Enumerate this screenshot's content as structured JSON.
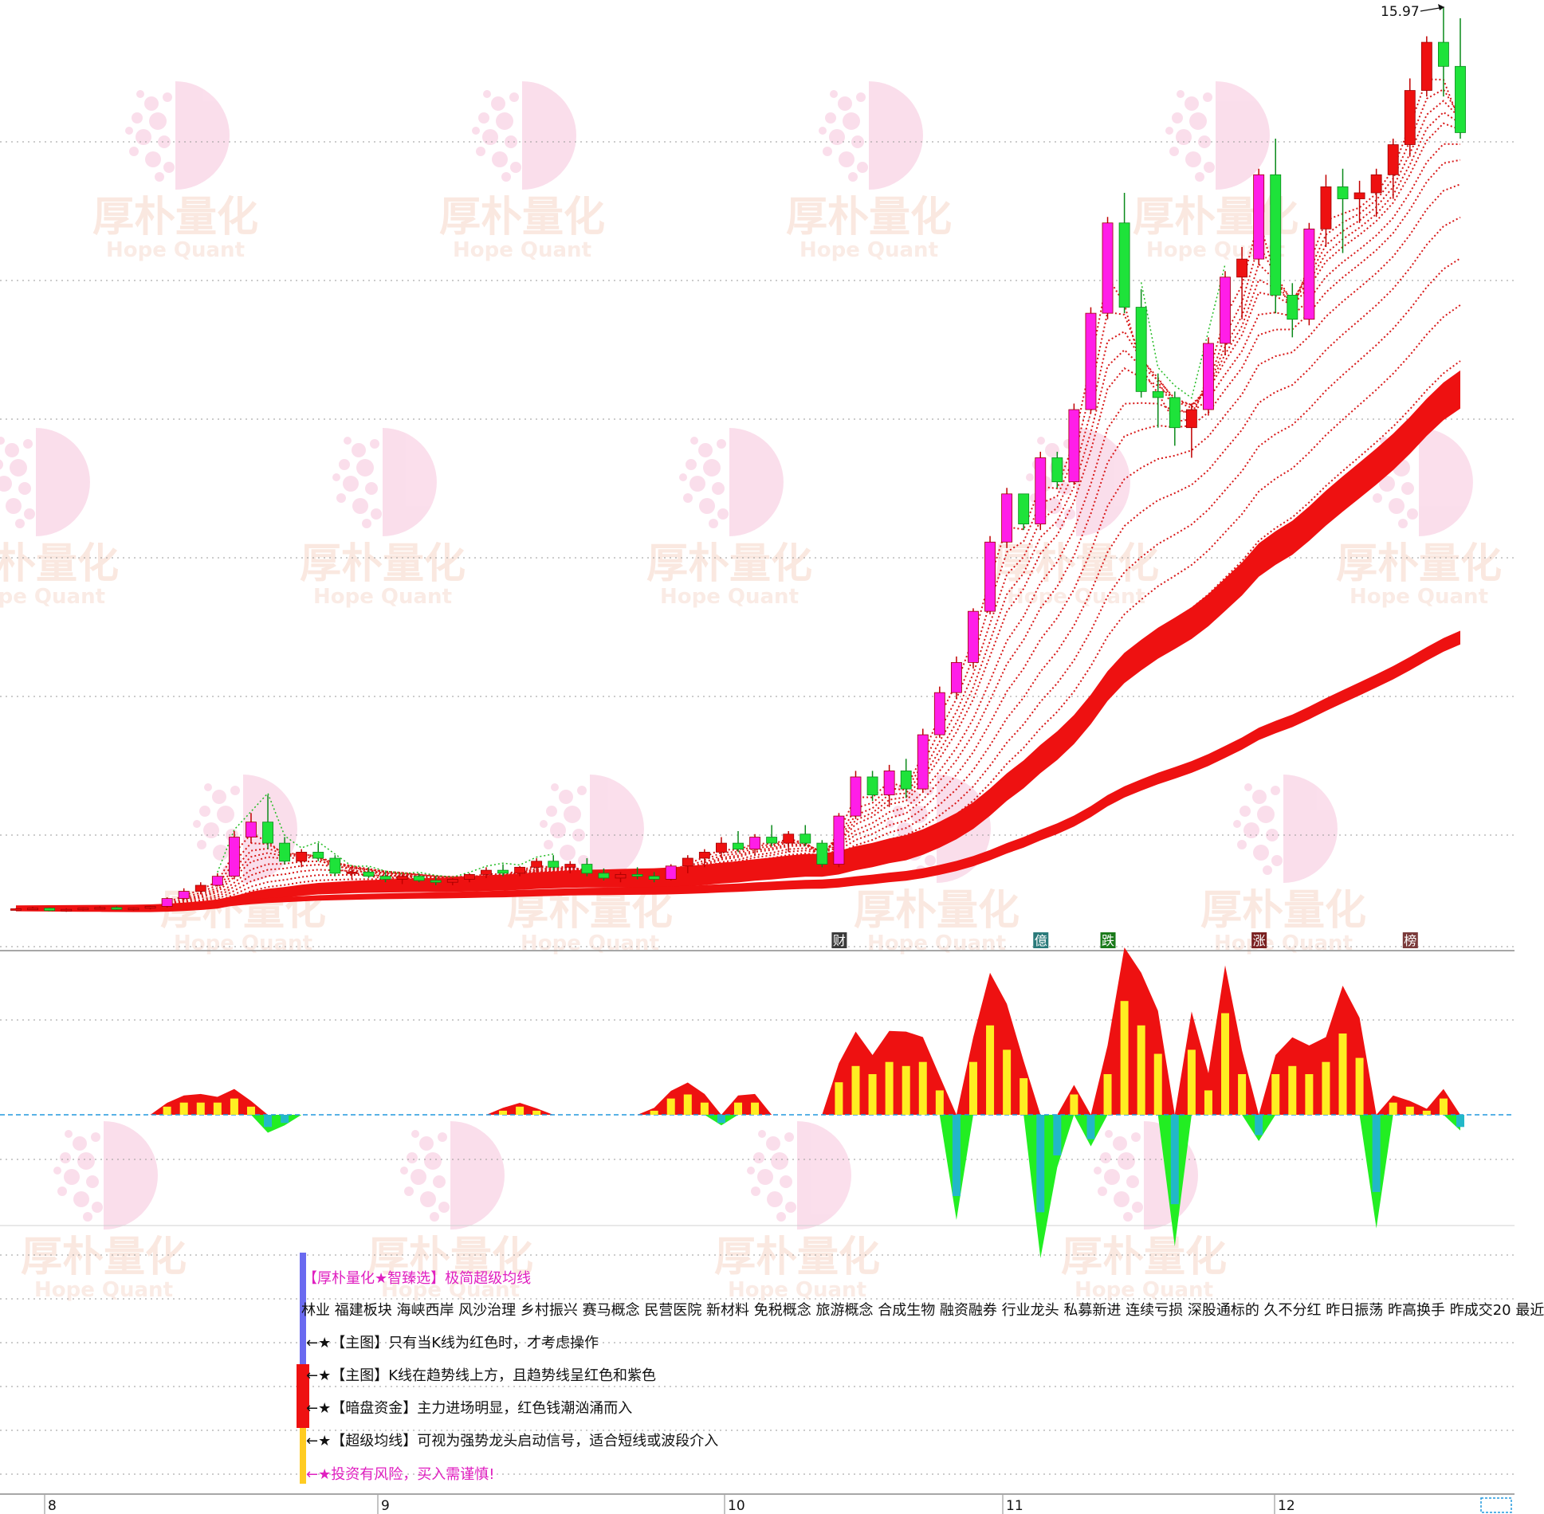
{
  "watermark": {
    "cn": "厚朴量化",
    "en": "Hope Quant"
  },
  "main_chart": {
    "peak_label": "15.97"
  },
  "event_tags": [
    {
      "text": "财",
      "color": "#3a3a3a"
    },
    {
      "text": "億",
      "color": "#2a7a7a"
    },
    {
      "text": "跌",
      "color": "#1a7a1a"
    },
    {
      "text": "涨",
      "color": "#7a2020"
    },
    {
      "text": "榜",
      "color": "#7a3a3a"
    }
  ],
  "info_panel": {
    "title": "【厚朴量化★智臻选】极简超级均线",
    "concepts": "林业 福建板块 海峡西岸 风沙治理 乡村振兴 赛马概念 民营医院 新材料 免税概念 旅游概念 合成生物 融资融券 行业龙头 私募新进 连续亏损 深股通标的 久不分红 昨日振荡 昨高换手 昨成交20 最近",
    "notes": [
      "←★【主图】只有当K线为红色时，才考虑操作",
      "←★【主图】K线在趋势线上方，且趋势线呈红色和紫色",
      "←★【暗盘资金】主力进场明显，红色钱潮汹涌而入",
      "←★【超级均线】可视为强势龙头启动信号，适合短线或波段介入"
    ],
    "warning": "←★投资有风险，买入需谨慎!"
  },
  "chart_data": {
    "type": "candlestick",
    "months": [
      "8",
      "9",
      "10",
      "11",
      "12"
    ],
    "peak_high": 15.97,
    "candles": [
      [
        1.0,
        1.02,
        0.98,
        1.01
      ],
      [
        1.01,
        1.04,
        0.99,
        1.02
      ],
      [
        1.02,
        1.03,
        0.97,
        0.98
      ],
      [
        0.98,
        1.02,
        0.96,
        1.0
      ],
      [
        1.0,
        1.03,
        0.98,
        1.02
      ],
      [
        1.02,
        1.05,
        1.0,
        1.03
      ],
      [
        1.03,
        1.05,
        0.99,
        1.0
      ],
      [
        1.0,
        1.03,
        0.98,
        1.02
      ],
      [
        1.02,
        1.06,
        1.0,
        1.05
      ],
      [
        1.05,
        1.2,
        1.03,
        1.18
      ],
      [
        1.18,
        1.35,
        1.15,
        1.3
      ],
      [
        1.3,
        1.45,
        1.25,
        1.4
      ],
      [
        1.4,
        1.6,
        1.38,
        1.55
      ],
      [
        1.55,
        2.3,
        1.5,
        2.2
      ],
      [
        2.2,
        2.6,
        2.1,
        2.45
      ],
      [
        2.45,
        2.9,
        2.0,
        2.1
      ],
      [
        2.1,
        2.2,
        1.75,
        1.8
      ],
      [
        1.8,
        2.0,
        1.7,
        1.95
      ],
      [
        1.95,
        2.1,
        1.8,
        1.85
      ],
      [
        1.85,
        1.9,
        1.55,
        1.6
      ],
      [
        1.6,
        1.7,
        1.5,
        1.62
      ],
      [
        1.62,
        1.7,
        1.52,
        1.55
      ],
      [
        1.55,
        1.62,
        1.45,
        1.5
      ],
      [
        1.5,
        1.58,
        1.42,
        1.55
      ],
      [
        1.55,
        1.6,
        1.45,
        1.48
      ],
      [
        1.48,
        1.55,
        1.4,
        1.45
      ],
      [
        1.45,
        1.52,
        1.4,
        1.5
      ],
      [
        1.5,
        1.6,
        1.45,
        1.58
      ],
      [
        1.58,
        1.7,
        1.52,
        1.65
      ],
      [
        1.65,
        1.75,
        1.55,
        1.6
      ],
      [
        1.6,
        1.72,
        1.55,
        1.7
      ],
      [
        1.7,
        1.85,
        1.62,
        1.8
      ],
      [
        1.8,
        1.9,
        1.65,
        1.7
      ],
      [
        1.7,
        1.8,
        1.6,
        1.75
      ],
      [
        1.75,
        1.85,
        1.55,
        1.6
      ],
      [
        1.6,
        1.68,
        1.48,
        1.52
      ],
      [
        1.52,
        1.62,
        1.45,
        1.58
      ],
      [
        1.58,
        1.7,
        1.5,
        1.55
      ],
      [
        1.55,
        1.62,
        1.45,
        1.5
      ],
      [
        1.5,
        1.75,
        1.48,
        1.72
      ],
      [
        1.72,
        1.9,
        1.6,
        1.85
      ],
      [
        1.85,
        2.0,
        1.7,
        1.95
      ],
      [
        1.95,
        2.2,
        1.85,
        2.1
      ],
      [
        2.1,
        2.3,
        1.95,
        2.0
      ],
      [
        2.0,
        2.25,
        1.9,
        2.2
      ],
      [
        2.2,
        2.4,
        2.05,
        2.1
      ],
      [
        2.1,
        2.3,
        1.95,
        2.25
      ],
      [
        2.25,
        2.4,
        2.05,
        2.1
      ],
      [
        2.1,
        2.15,
        1.7,
        1.75
      ],
      [
        1.75,
        2.6,
        1.7,
        2.55
      ],
      [
        2.55,
        3.3,
        2.5,
        3.2
      ],
      [
        3.2,
        3.3,
        2.8,
        2.9
      ],
      [
        2.9,
        3.4,
        2.7,
        3.3
      ],
      [
        3.3,
        3.5,
        2.85,
        3.0
      ],
      [
        3.0,
        4.0,
        2.95,
        3.9
      ],
      [
        3.9,
        4.7,
        3.85,
        4.6
      ],
      [
        4.6,
        5.2,
        4.5,
        5.1
      ],
      [
        5.1,
        6.0,
        5.0,
        5.95
      ],
      [
        5.95,
        7.2,
        5.9,
        7.1
      ],
      [
        7.1,
        8.0,
        7.0,
        7.9
      ],
      [
        7.9,
        7.9,
        7.3,
        7.4
      ],
      [
        7.4,
        8.6,
        7.3,
        8.5
      ],
      [
        8.5,
        8.6,
        8.0,
        8.1
      ],
      [
        8.1,
        9.4,
        8.05,
        9.3
      ],
      [
        9.3,
        11.0,
        9.25,
        10.9
      ],
      [
        10.9,
        12.5,
        10.8,
        12.4
      ],
      [
        12.4,
        12.9,
        10.9,
        11.0
      ],
      [
        11.0,
        11.3,
        9.5,
        9.6
      ],
      [
        9.6,
        9.9,
        9.0,
        9.5
      ],
      [
        9.5,
        9.6,
        8.7,
        9.0
      ],
      [
        9.0,
        9.4,
        8.5,
        9.3
      ],
      [
        9.3,
        10.5,
        9.2,
        10.4
      ],
      [
        10.4,
        11.6,
        10.2,
        11.5
      ],
      [
        11.5,
        12.0,
        10.8,
        11.8
      ],
      [
        11.8,
        13.3,
        11.7,
        13.2
      ],
      [
        13.2,
        13.8,
        10.9,
        11.2
      ],
      [
        11.2,
        11.4,
        10.5,
        10.8
      ],
      [
        10.8,
        12.4,
        10.7,
        12.3
      ],
      [
        12.3,
        13.2,
        12.0,
        13.0
      ],
      [
        13.0,
        13.3,
        11.9,
        12.8
      ],
      [
        12.8,
        13.1,
        12.4,
        12.9
      ],
      [
        12.9,
        13.3,
        12.5,
        13.2
      ],
      [
        13.2,
        13.8,
        12.8,
        13.7
      ],
      [
        13.7,
        14.8,
        13.5,
        14.6
      ],
      [
        14.6,
        15.5,
        14.5,
        15.4
      ],
      [
        15.4,
        15.97,
        14.5,
        15.0
      ],
      [
        15.0,
        15.8,
        13.8,
        13.9
      ]
    ],
    "flow_bars": [
      0,
      0,
      0,
      0,
      0,
      0,
      0,
      0,
      0,
      0.2,
      0.3,
      0.3,
      0.3,
      0.4,
      0.2,
      -0.3,
      -0.2,
      0,
      0,
      0,
      0,
      0,
      0,
      0,
      0,
      0,
      0,
      0,
      0,
      0.1,
      0.2,
      0.1,
      0,
      0,
      0,
      0,
      0,
      0,
      0.1,
      0.4,
      0.5,
      0.3,
      -0.2,
      0.3,
      0.3,
      0,
      0,
      0,
      0,
      0.8,
      1.2,
      1.0,
      1.3,
      1.2,
      1.3,
      0.6,
      -2.0,
      1.3,
      2.2,
      1.6,
      0.9,
      -2.4,
      -1.0,
      0.5,
      -0.6,
      1.0,
      2.8,
      2.2,
      1.5,
      -2.2,
      1.6,
      0.6,
      2.5,
      1.0,
      -0.5,
      1.0,
      1.2,
      1.0,
      1.3,
      2.0,
      1.4,
      -1.9,
      0.3,
      0.2,
      0.1,
      0.4,
      -0.3
    ]
  }
}
